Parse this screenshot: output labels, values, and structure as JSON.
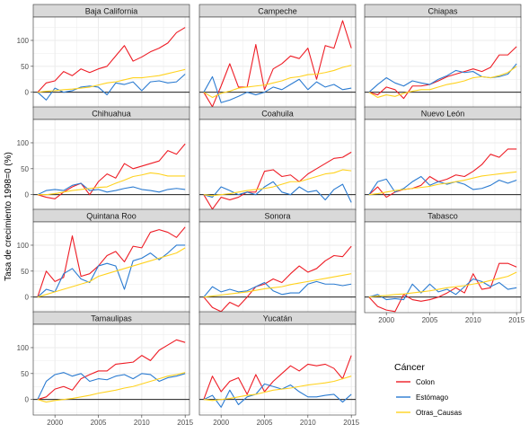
{
  "chart_data": {
    "type": "line",
    "title": "",
    "xlabel": "",
    "ylabel": "Tasa de crecimiento 1998=0 (%)",
    "x_ticks": [
      "2000",
      "2005",
      "2010",
      "2015"
    ],
    "y_ticks": [
      "0",
      "50",
      "100"
    ],
    "xlim": [
      1997.5,
      2015.5
    ],
    "ylim": [
      -30,
      145
    ],
    "grid": true,
    "facet_layout": "3 columns x 4 rows, free x-axis labels on bottom panels",
    "legend_title": "Cáncer",
    "legend_position": "bottom-right",
    "series_names": [
      "Colon",
      "Estómago",
      "Otras_Causas"
    ],
    "colors": {
      "Colon": "#ee1c25",
      "Estómago": "#2b7bd1",
      "Otras_Causas": "#ffd21f",
      "strip_bg": "#d9d9d9",
      "grid": "#ebebeb",
      "zero_line": "#000000"
    },
    "x": [
      1998,
      1999,
      2000,
      2001,
      2002,
      2003,
      2004,
      2005,
      2006,
      2007,
      2008,
      2009,
      2010,
      2011,
      2012,
      2013,
      2014,
      2015
    ],
    "panels": [
      {
        "name": "Baja California",
        "series": [
          {
            "name": "Colon",
            "values": [
              0,
              18,
              22,
              40,
              32,
              45,
              38,
              45,
              50,
              70,
              90,
              60,
              68,
              78,
              85,
              95,
              115,
              125
            ]
          },
          {
            "name": "Estómago",
            "values": [
              0,
              -15,
              8,
              0,
              3,
              10,
              12,
              10,
              -5,
              18,
              15,
              20,
              3,
              20,
              22,
              18,
              20,
              35
            ]
          },
          {
            "name": "Otras_Causas",
            "values": [
              0,
              2,
              3,
              5,
              6,
              8,
              10,
              14,
              18,
              20,
              24,
              28,
              28,
              30,
              32,
              36,
              40,
              44
            ]
          }
        ]
      },
      {
        "name": "Campeche",
        "series": [
          {
            "name": "Colon",
            "values": [
              0,
              -28,
              12,
              55,
              10,
              10,
              92,
              5,
              45,
              55,
              70,
              65,
              85,
              25,
              90,
              85,
              138,
              85
            ]
          },
          {
            "name": "Estómago",
            "values": [
              0,
              30,
              -20,
              -15,
              -8,
              0,
              -5,
              0,
              10,
              5,
              15,
              25,
              5,
              20,
              10,
              15,
              5,
              8
            ]
          },
          {
            "name": "Otras_Causas",
            "values": [
              0,
              -10,
              -2,
              2,
              8,
              10,
              12,
              14,
              18,
              22,
              28,
              30,
              34,
              35,
              38,
              42,
              48,
              52
            ]
          }
        ]
      },
      {
        "name": "Chiapas",
        "series": [
          {
            "name": "Colon",
            "values": [
              0,
              -5,
              10,
              5,
              -12,
              12,
              12,
              15,
              22,
              30,
              35,
              40,
              45,
              40,
              48,
              72,
              72,
              88
            ]
          },
          {
            "name": "Estómago",
            "values": [
              0,
              15,
              28,
              18,
              12,
              22,
              18,
              15,
              25,
              32,
              42,
              38,
              40,
              30,
              28,
              30,
              35,
              55
            ]
          },
          {
            "name": "Otras_Causas",
            "values": [
              0,
              -10,
              -5,
              -8,
              -2,
              2,
              5,
              5,
              10,
              15,
              18,
              22,
              28,
              30,
              28,
              32,
              38,
              50
            ]
          }
        ]
      },
      {
        "name": "Chihuahua",
        "series": [
          {
            "name": "Colon",
            "values": [
              0,
              -5,
              -8,
              5,
              15,
              22,
              0,
              25,
              40,
              32,
              60,
              50,
              55,
              60,
              65,
              85,
              78,
              98
            ]
          },
          {
            "name": "Estómago",
            "values": [
              0,
              8,
              10,
              8,
              18,
              22,
              8,
              10,
              5,
              8,
              12,
              15,
              10,
              8,
              5,
              10,
              12,
              10
            ]
          },
          {
            "name": "Otras_Causas",
            "values": [
              0,
              0,
              2,
              5,
              8,
              10,
              12,
              14,
              15,
              22,
              28,
              35,
              38,
              42,
              40,
              36,
              36,
              36
            ]
          }
        ]
      },
      {
        "name": "Coahuila",
        "series": [
          {
            "name": "Colon",
            "values": [
              0,
              -28,
              -5,
              -10,
              -5,
              5,
              5,
              45,
              48,
              35,
              38,
              25,
              40,
              50,
              60,
              70,
              72,
              82
            ]
          },
          {
            "name": "Estómago",
            "values": [
              0,
              -5,
              15,
              8,
              0,
              5,
              0,
              15,
              25,
              5,
              0,
              15,
              5,
              8,
              -10,
              10,
              20,
              -15
            ]
          },
          {
            "name": "Otras_Causas",
            "values": [
              0,
              -2,
              0,
              2,
              5,
              8,
              10,
              12,
              15,
              20,
              25,
              25,
              30,
              35,
              40,
              42,
              48,
              46
            ]
          }
        ]
      },
      {
        "name": "Nuevo León",
        "series": [
          {
            "name": "Colon",
            "values": [
              0,
              15,
              -5,
              5,
              10,
              12,
              18,
              35,
              25,
              30,
              38,
              35,
              45,
              58,
              78,
              72,
              88,
              88
            ]
          },
          {
            "name": "Estómago",
            "values": [
              0,
              25,
              30,
              5,
              12,
              25,
              35,
              18,
              25,
              20,
              25,
              20,
              10,
              12,
              18,
              28,
              22,
              28
            ]
          },
          {
            "name": "Otras_Causas",
            "values": [
              0,
              2,
              5,
              8,
              10,
              12,
              14,
              16,
              20,
              22,
              25,
              28,
              32,
              36,
              38,
              40,
              42,
              44
            ]
          }
        ]
      },
      {
        "name": "Quintana Roo",
        "series": [
          {
            "name": "Colon",
            "values": [
              0,
              50,
              30,
              38,
              118,
              40,
              45,
              60,
              80,
              88,
              68,
              98,
              95,
              125,
              130,
              125,
              115,
              135
            ]
          },
          {
            "name": "Estómago",
            "values": [
              0,
              15,
              10,
              45,
              55,
              35,
              28,
              60,
              65,
              60,
              15,
              70,
              75,
              85,
              72,
              85,
              100,
              100
            ]
          },
          {
            "name": "Otras_Causas",
            "values": [
              0,
              5,
              10,
              15,
              20,
              25,
              30,
              40,
              45,
              50,
              55,
              60,
              65,
              70,
              75,
              80,
              85,
              95
            ]
          }
        ]
      },
      {
        "name": "Sonora",
        "series": [
          {
            "name": "Colon",
            "values": [
              0,
              -20,
              -28,
              -10,
              -18,
              0,
              20,
              25,
              35,
              28,
              45,
              60,
              48,
              55,
              70,
              80,
              78,
              98
            ]
          },
          {
            "name": "Estómago",
            "values": [
              0,
              20,
              10,
              15,
              10,
              12,
              20,
              28,
              12,
              5,
              8,
              8,
              25,
              30,
              25,
              25,
              22,
              25
            ]
          },
          {
            "name": "Otras_Causas",
            "values": [
              0,
              2,
              4,
              6,
              8,
              10,
              13,
              16,
              18,
              20,
              24,
              27,
              30,
              33,
              36,
              39,
              42,
              45
            ]
          }
        ]
      },
      {
        "name": "Tabasco",
        "series": [
          {
            "name": "Colon",
            "values": [
              0,
              -18,
              -25,
              -28,
              5,
              -5,
              -8,
              -5,
              0,
              8,
              18,
              8,
              45,
              15,
              18,
              65,
              65,
              58
            ]
          },
          {
            "name": "Estómago",
            "values": [
              0,
              5,
              -5,
              -3,
              -5,
              25,
              8,
              25,
              10,
              15,
              5,
              20,
              35,
              30,
              20,
              28,
              15,
              18
            ]
          },
          {
            "name": "Otras_Causas",
            "values": [
              0,
              2,
              3,
              5,
              6,
              8,
              10,
              12,
              15,
              18,
              20,
              22,
              25,
              28,
              32,
              36,
              40,
              48
            ]
          }
        ]
      },
      {
        "name": "Tamaulipas",
        "series": [
          {
            "name": "Colon",
            "values": [
              0,
              5,
              20,
              25,
              18,
              40,
              48,
              55,
              55,
              68,
              70,
              72,
              85,
              75,
              95,
              105,
              115,
              110
            ]
          },
          {
            "name": "Estómago",
            "values": [
              0,
              35,
              48,
              52,
              45,
              50,
              35,
              40,
              38,
              45,
              48,
              40,
              50,
              48,
              35,
              42,
              45,
              50
            ]
          },
          {
            "name": "Otras_Causas",
            "values": [
              0,
              -5,
              -2,
              0,
              2,
              5,
              8,
              12,
              15,
              18,
              22,
              25,
              30,
              35,
              40,
              45,
              48,
              52
            ]
          }
        ]
      },
      {
        "name": "Yucatán",
        "series": [
          {
            "name": "Colon",
            "values": [
              0,
              45,
              15,
              35,
              42,
              10,
              48,
              15,
              35,
              50,
              65,
              55,
              68,
              65,
              68,
              60,
              40,
              85
            ]
          },
          {
            "name": "Estómago",
            "values": [
              0,
              8,
              -15,
              18,
              -10,
              5,
              10,
              30,
              25,
              20,
              28,
              15,
              5,
              5,
              8,
              10,
              -5,
              10
            ]
          },
          {
            "name": "Otras_Causas",
            "values": [
              0,
              -2,
              0,
              2,
              5,
              8,
              10,
              14,
              18,
              20,
              22,
              25,
              28,
              30,
              32,
              35,
              40,
              45
            ]
          }
        ]
      }
    ]
  }
}
